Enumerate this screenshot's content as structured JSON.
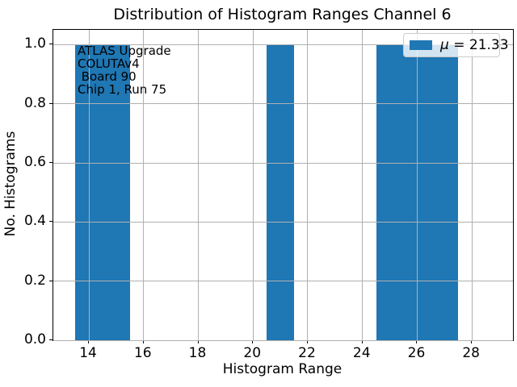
{
  "chart_data": {
    "type": "bar",
    "subtype": "histogram",
    "title": "Distribution of Histogram Ranges Channel 6",
    "xlabel": "Histogram Range",
    "ylabel": "No. Histograms",
    "xlim": [
      12.7,
      29.5
    ],
    "ylim": [
      0,
      1.05
    ],
    "x_ticks": [
      14,
      16,
      18,
      20,
      22,
      24,
      26,
      28
    ],
    "y_ticks": [
      0,
      0.2,
      0.4,
      0.6,
      0.8,
      1.0
    ],
    "y_tick_labels": [
      "0.0",
      "0.2",
      "0.4",
      "0.6",
      "0.8",
      "1.0"
    ],
    "grid": true,
    "grid_over_bars": true,
    "bin_width": 1,
    "values": [
      14,
      15,
      21,
      25,
      26,
      27
    ],
    "mean": 21.33,
    "bars": [
      {
        "x_start": 13.5,
        "x_end": 14.5,
        "count": 1
      },
      {
        "x_start": 14.5,
        "x_end": 15.5,
        "count": 1
      },
      {
        "x_start": 20.5,
        "x_end": 21.5,
        "count": 1
      },
      {
        "x_start": 24.5,
        "x_end": 25.5,
        "count": 1
      },
      {
        "x_start": 25.5,
        "x_end": 26.5,
        "count": 1
      },
      {
        "x_start": 26.5,
        "x_end": 27.5,
        "count": 1
      }
    ],
    "colors": {
      "bar": "#1f77b4",
      "grid": "#b0b0b0",
      "axes_edge": "#000000",
      "legend_edge": "#cccccc"
    },
    "legend": {
      "position": "upper right",
      "symbol": "μ",
      "rest": " = 21.33",
      "full_label": "μ = 21.33"
    },
    "annotation": "ATLAS Upgrade\nCOLUTAv4\n Board 90\nChip 1, Run 75"
  }
}
